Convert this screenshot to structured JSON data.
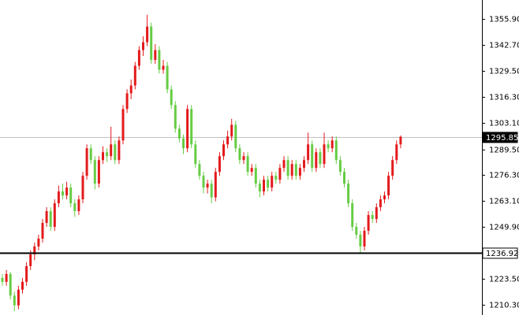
{
  "chart_data": {
    "type": "candlestick",
    "up_color": "#e31a1c",
    "down_color": "#66cc44",
    "ylim": [
      1205.1,
      1365.5
    ],
    "yticks": [
      {
        "value": 1355.9,
        "label": "1355.90"
      },
      {
        "value": 1342.7,
        "label": "1342.70"
      },
      {
        "value": 1329.5,
        "label": "1329.50"
      },
      {
        "value": 1316.3,
        "label": "1316.30"
      },
      {
        "value": 1303.1,
        "label": "1303.10"
      },
      {
        "value": 1289.5,
        "label": "1289.50"
      },
      {
        "value": 1276.3,
        "label": "1276.30"
      },
      {
        "value": 1263.1,
        "label": "1263.10"
      },
      {
        "value": 1249.9,
        "label": "1249.90"
      },
      {
        "value": 1223.5,
        "label": "1223.50"
      },
      {
        "value": 1210.3,
        "label": "1210.30"
      }
    ],
    "price_line": {
      "value": 1295.85,
      "color": "#c0c0c0"
    },
    "level_line": {
      "value": 1236.92,
      "color": "#000000"
    },
    "ohlc": [
      [
        1224,
        1226,
        1220,
        1222
      ],
      [
        1222,
        1228,
        1220,
        1226
      ],
      [
        1226,
        1227,
        1213,
        1215
      ],
      [
        1215,
        1217,
        1207,
        1210
      ],
      [
        1210,
        1220,
        1208,
        1218
      ],
      [
        1218,
        1224,
        1216,
        1222
      ],
      [
        1222,
        1232,
        1220,
        1230
      ],
      [
        1230,
        1238,
        1228,
        1236
      ],
      [
        1236,
        1242,
        1233,
        1240
      ],
      [
        1240,
        1246,
        1238,
        1244
      ],
      [
        1244,
        1254,
        1242,
        1252
      ],
      [
        1252,
        1260,
        1250,
        1258
      ],
      [
        1258,
        1260,
        1248,
        1250
      ],
      [
        1250,
        1264,
        1248,
        1262
      ],
      [
        1262,
        1271,
        1260,
        1268
      ],
      [
        1268,
        1272,
        1264,
        1266
      ],
      [
        1266,
        1273,
        1264,
        1270
      ],
      [
        1270,
        1272,
        1260,
        1262
      ],
      [
        1262,
        1264,
        1255,
        1258
      ],
      [
        1258,
        1266,
        1256,
        1264
      ],
      [
        1264,
        1278,
        1262,
        1276
      ],
      [
        1276,
        1292,
        1274,
        1290
      ],
      [
        1290,
        1292,
        1282,
        1284
      ],
      [
        1284,
        1286,
        1269,
        1272
      ],
      [
        1272,
        1286,
        1270,
        1284
      ],
      [
        1284,
        1291,
        1282,
        1288
      ],
      [
        1288,
        1290,
        1283,
        1286
      ],
      [
        1286,
        1301,
        1284,
        1292
      ],
      [
        1292,
        1294,
        1282,
        1284
      ],
      [
        1284,
        1296,
        1282,
        1294
      ],
      [
        1294,
        1312,
        1292,
        1310
      ],
      [
        1310,
        1320,
        1308,
        1318
      ],
      [
        1318,
        1325,
        1315,
        1322
      ],
      [
        1322,
        1334,
        1320,
        1332
      ],
      [
        1332,
        1342,
        1330,
        1340
      ],
      [
        1340,
        1347,
        1337,
        1344
      ],
      [
        1344,
        1358,
        1342,
        1352
      ],
      [
        1352,
        1354,
        1333,
        1335
      ],
      [
        1335,
        1343,
        1333,
        1340
      ],
      [
        1340,
        1342,
        1328,
        1330
      ],
      [
        1330,
        1335,
        1328,
        1332
      ],
      [
        1332,
        1334,
        1318,
        1320
      ],
      [
        1320,
        1322,
        1310,
        1312
      ],
      [
        1312,
        1314,
        1298,
        1300
      ],
      [
        1300,
        1302,
        1293,
        1295
      ],
      [
        1295,
        1297,
        1287,
        1290
      ],
      [
        1290,
        1312,
        1288,
        1310
      ],
      [
        1310,
        1312,
        1290,
        1292
      ],
      [
        1292,
        1294,
        1280,
        1282
      ],
      [
        1282,
        1284,
        1274,
        1276
      ],
      [
        1276,
        1278,
        1267,
        1270
      ],
      [
        1270,
        1274,
        1267,
        1272
      ],
      [
        1272,
        1274,
        1262,
        1265
      ],
      [
        1265,
        1280,
        1263,
        1278
      ],
      [
        1278,
        1288,
        1276,
        1286
      ],
      [
        1286,
        1294,
        1284,
        1292
      ],
      [
        1292,
        1299,
        1290,
        1296
      ],
      [
        1296,
        1305,
        1294,
        1302
      ],
      [
        1302,
        1304,
        1288,
        1290
      ],
      [
        1290,
        1292,
        1282,
        1284
      ],
      [
        1284,
        1288,
        1282,
        1286
      ],
      [
        1286,
        1288,
        1276,
        1278
      ],
      [
        1278,
        1282,
        1276,
        1280
      ],
      [
        1280,
        1282,
        1270,
        1272
      ],
      [
        1272,
        1274,
        1265,
        1268
      ],
      [
        1268,
        1276,
        1266,
        1274
      ],
      [
        1274,
        1276,
        1268,
        1270
      ],
      [
        1270,
        1278,
        1268,
        1276
      ],
      [
        1276,
        1278,
        1272,
        1274
      ],
      [
        1274,
        1282,
        1272,
        1280
      ],
      [
        1280,
        1286,
        1278,
        1284
      ],
      [
        1284,
        1286,
        1274,
        1276
      ],
      [
        1276,
        1284,
        1274,
        1282
      ],
      [
        1282,
        1284,
        1274,
        1276
      ],
      [
        1276,
        1282,
        1274,
        1280
      ],
      [
        1280,
        1286,
        1278,
        1284
      ],
      [
        1284,
        1298,
        1282,
        1292
      ],
      [
        1292,
        1294,
        1278,
        1280
      ],
      [
        1280,
        1290,
        1278,
        1288
      ],
      [
        1288,
        1290,
        1280,
        1282
      ],
      [
        1282,
        1298,
        1280,
        1292
      ],
      [
        1292,
        1294,
        1288,
        1290
      ],
      [
        1290,
        1296,
        1288,
        1294
      ],
      [
        1294,
        1296,
        1282,
        1284
      ],
      [
        1284,
        1286,
        1276,
        1278
      ],
      [
        1278,
        1280,
        1270,
        1272
      ],
      [
        1272,
        1274,
        1260,
        1262
      ],
      [
        1262,
        1264,
        1248,
        1250
      ],
      [
        1250,
        1252,
        1244,
        1246
      ],
      [
        1246,
        1248,
        1237,
        1240
      ],
      [
        1240,
        1250,
        1238,
        1248
      ],
      [
        1248,
        1258,
        1246,
        1256
      ],
      [
        1256,
        1258,
        1252,
        1254
      ],
      [
        1254,
        1262,
        1252,
        1260
      ],
      [
        1260,
        1266,
        1258,
        1264
      ],
      [
        1264,
        1268,
        1262,
        1266
      ],
      [
        1266,
        1278,
        1264,
        1276
      ],
      [
        1276,
        1286,
        1274,
        1284
      ],
      [
        1284,
        1294,
        1282,
        1292
      ],
      [
        1292,
        1296.5,
        1290,
        1295.85
      ]
    ]
  }
}
